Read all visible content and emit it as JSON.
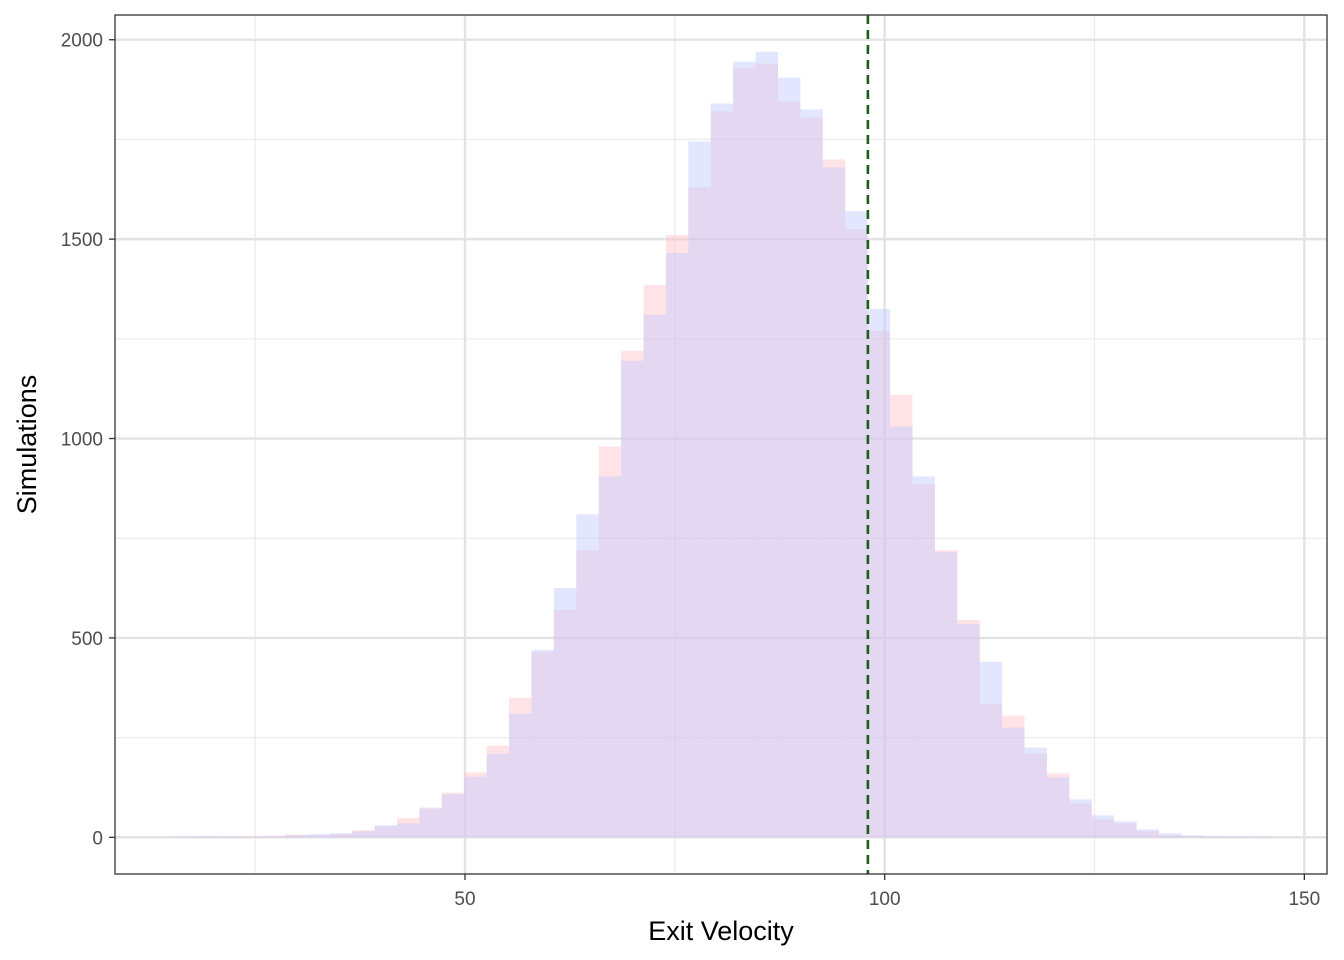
{
  "chart_data": {
    "type": "bar",
    "title": "",
    "xlabel": "Exit Velocity",
    "ylabel": "Simulations",
    "xlim": [
      8.3,
      152.7
    ],
    "ylim": [
      -92,
      2062
    ],
    "x_ticks": [
      50,
      100,
      150
    ],
    "x_tick_labels": [
      "50",
      "100",
      "150"
    ],
    "x_minor_ticks": [
      25,
      75,
      125
    ],
    "y_ticks": [
      0,
      500,
      1000,
      1500,
      2000
    ],
    "y_tick_labels": [
      "0",
      "500",
      "1000",
      "1500",
      "2000"
    ],
    "y_minor_ticks": [
      250,
      750,
      1250,
      1750
    ],
    "grid": true,
    "legend": "none",
    "reference_line": {
      "x": 98,
      "style": "dashed",
      "color": "#1a5e1a"
    },
    "bin_width": 2.67,
    "bin_start": 15.2,
    "series": [
      {
        "color": "#ffc0c8",
        "opacity": 0.45,
        "values": [
          1,
          2,
          2,
          3,
          4,
          7,
          5,
          8,
          18,
          28,
          48,
          75,
          112,
          163,
          230,
          350,
          465,
          570,
          720,
          980,
          1220,
          1385,
          1510,
          1630,
          1820,
          1930,
          1940,
          1845,
          1805,
          1700,
          1525,
          1270,
          1110,
          885,
          720,
          545,
          335,
          305,
          210,
          160,
          85,
          45,
          35,
          15,
          5,
          3,
          2,
          1,
          0
        ]
      },
      {
        "color": "#c0c8ff",
        "opacity": 0.45,
        "values": [
          2,
          3,
          2,
          2,
          3,
          5,
          8,
          10,
          15,
          30,
          35,
          72,
          108,
          152,
          210,
          310,
          470,
          625,
          810,
          905,
          1195,
          1310,
          1465,
          1745,
          1840,
          1945,
          1970,
          1905,
          1825,
          1680,
          1570,
          1325,
          1030,
          905,
          715,
          535,
          440,
          275,
          225,
          150,
          95,
          55,
          40,
          20,
          10,
          5,
          3,
          3,
          2
        ]
      }
    ]
  }
}
